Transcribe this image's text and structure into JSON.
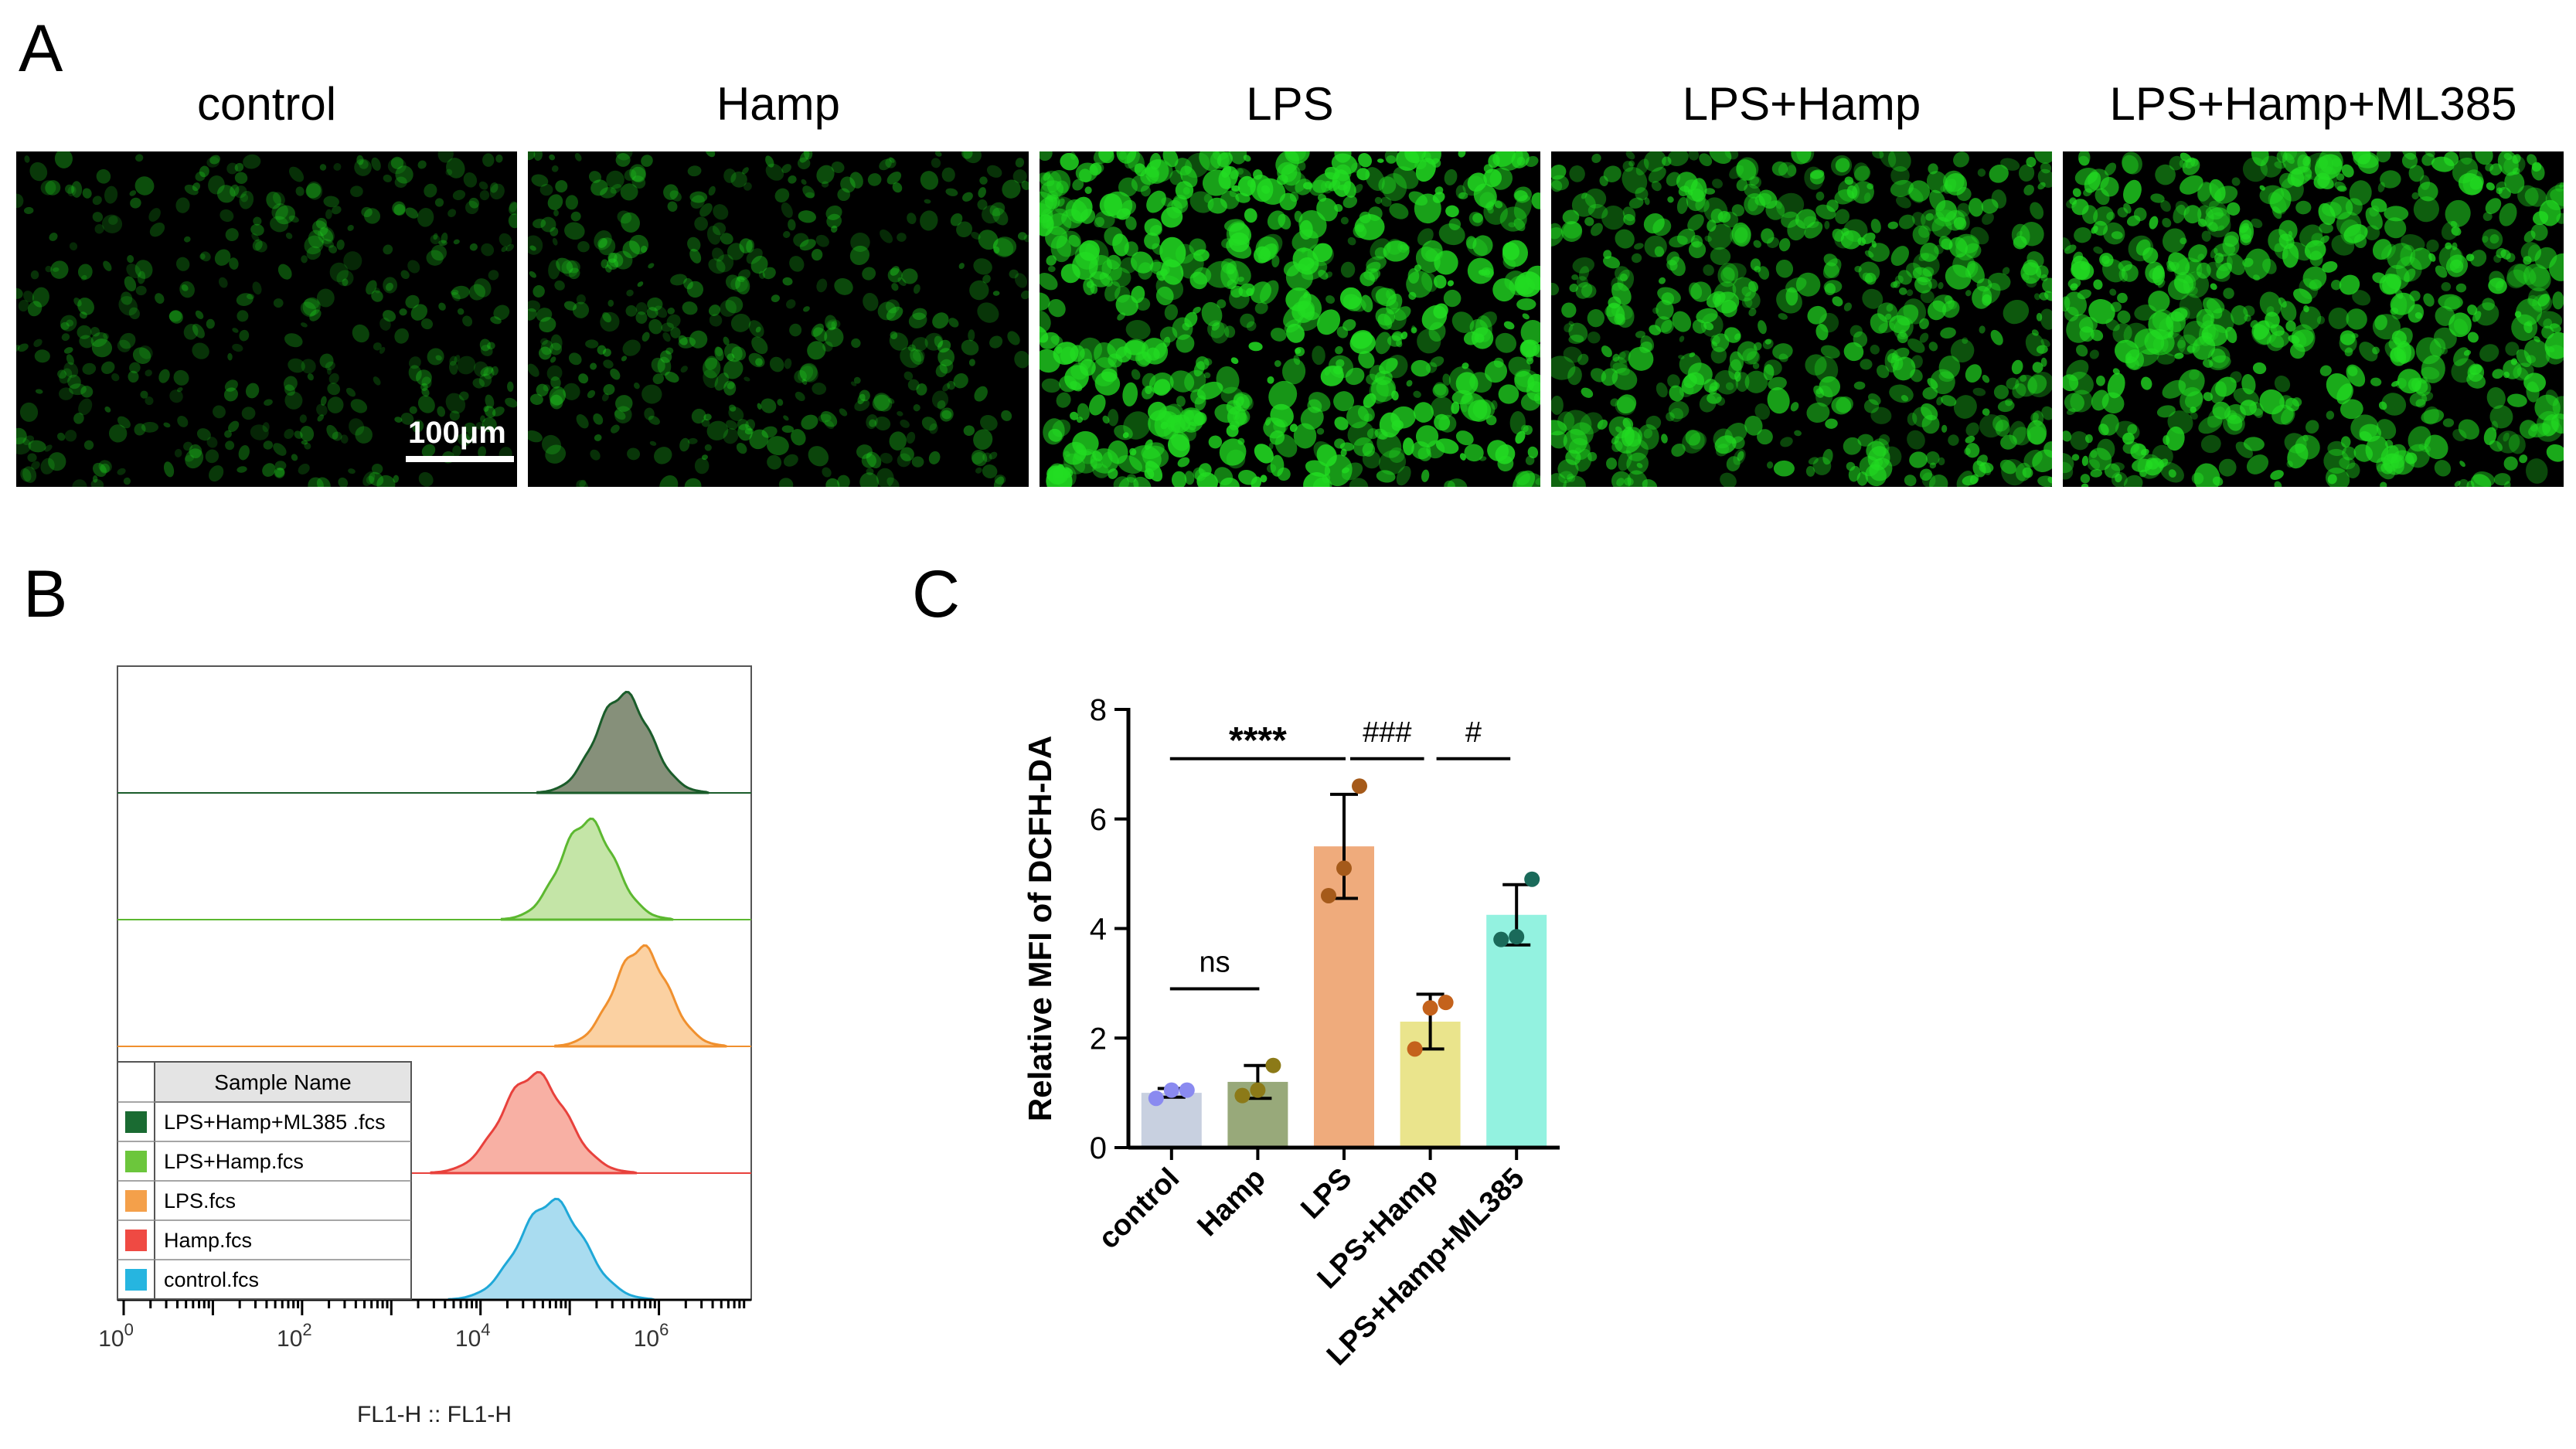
{
  "panels": {
    "A": "A",
    "B": "B",
    "C": "C"
  },
  "micrographs": {
    "titles": [
      "control",
      "Hamp",
      "LPS",
      "LPS+Hamp",
      "LPS+Hamp+ML385"
    ],
    "scale_bar_label": "100μm",
    "brightness": [
      0.35,
      0.42,
      1.0,
      0.8,
      0.9
    ],
    "color": "#22dd22"
  },
  "chart_data": [
    {
      "type": "area",
      "panel": "B",
      "title": "",
      "xlabel": "FL1-H :: FL1-H",
      "x_scale": "log10",
      "xlim": [
        1,
        10000000
      ],
      "x_ticks": [
        {
          "base": "10",
          "exp": "0"
        },
        {
          "base": "10",
          "exp": "2"
        },
        {
          "base": "10",
          "exp": "4"
        },
        {
          "base": "10",
          "exp": "6"
        }
      ],
      "legend": {
        "header": "Sample Name",
        "placement": "bottom-left",
        "entries": [
          {
            "name": "LPS+Hamp+ML385 .fcs",
            "color": "#1a6b32"
          },
          {
            "name": "LPS+Hamp.fcs",
            "color": "#6cc63c"
          },
          {
            "name": "LPS.fcs",
            "color": "#f4a04a"
          },
          {
            "name": "Hamp.fcs",
            "color": "#ef4a43"
          },
          {
            "name": "control.fcs",
            "color": "#26b5e0"
          }
        ]
      },
      "series": [
        {
          "name": "LPS+Hamp+ML385 .fcs",
          "peak_log10": 5.6,
          "width_log10": 0.3,
          "fill": "#86907a",
          "stroke": "#1a5c2a"
        },
        {
          "name": "LPS+Hamp.fcs",
          "peak_log10": 5.2,
          "width_log10": 0.3,
          "fill": "#c4e5a7",
          "stroke": "#5cb830"
        },
        {
          "name": "LPS.fcs",
          "peak_log10": 5.8,
          "width_log10": 0.3,
          "fill": "#fbd1a2",
          "stroke": "#f0902e"
        },
        {
          "name": "Hamp.fcs",
          "peak_log10": 4.6,
          "width_log10": 0.36,
          "fill": "#f8b0a4",
          "stroke": "#e8413c"
        },
        {
          "name": "control.fcs",
          "peak_log10": 4.8,
          "width_log10": 0.36,
          "fill": "#a9dcf0",
          "stroke": "#1fa8d8"
        }
      ]
    },
    {
      "type": "bar",
      "panel": "C",
      "title": "",
      "xlabel": "",
      "ylabel": "Relative MFI of DCFH-DA",
      "ylim": [
        0,
        8
      ],
      "y_ticks": [
        "0",
        "2",
        "4",
        "6",
        "8"
      ],
      "grid": false,
      "categories": [
        "control",
        "Hamp",
        "LPS",
        "LPS+Hamp",
        "LPS+Hamp+ML385"
      ],
      "values": [
        1.0,
        1.2,
        5.5,
        2.3,
        4.25
      ],
      "errors": [
        0.08,
        0.3,
        0.95,
        0.5,
        0.55
      ],
      "points": [
        [
          0.9,
          1.05,
          1.05
        ],
        [
          0.95,
          1.05,
          1.5
        ],
        [
          4.6,
          5.1,
          6.6
        ],
        [
          1.8,
          2.55,
          2.65
        ],
        [
          3.8,
          3.85,
          4.9
        ]
      ],
      "bar_colors": [
        "#c8d0e0",
        "#98a97a",
        "#efab7c",
        "#eae48c",
        "#93f2e0"
      ],
      "point_colors": [
        "#8a8af0",
        "#8c7a18",
        "#a55a1a",
        "#c4621c",
        "#1a6a5a"
      ],
      "comparisons": [
        {
          "from": 0,
          "to": 1,
          "y": 2.9,
          "label": "ns"
        },
        {
          "from": 0,
          "to": 2,
          "y": 7.1,
          "label": "****"
        },
        {
          "from": 2,
          "to": 3,
          "y": 7.1,
          "label": "###"
        },
        {
          "from": 3,
          "to": 4,
          "y": 7.1,
          "label": "#"
        }
      ]
    }
  ]
}
